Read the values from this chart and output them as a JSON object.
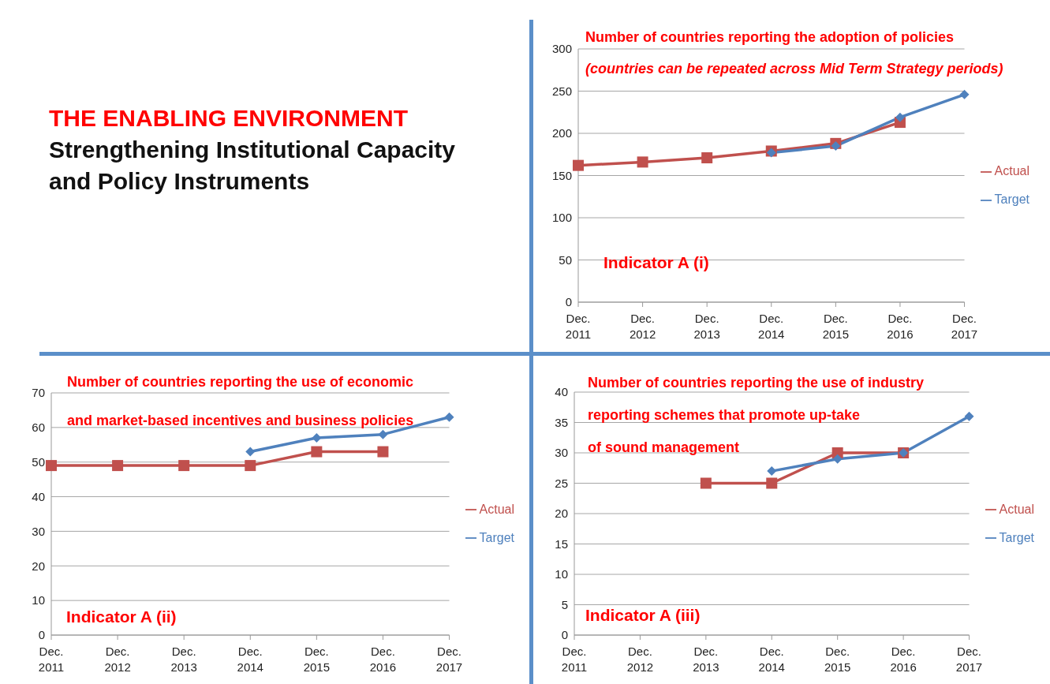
{
  "chart_data": [
    {
      "type": "other",
      "title": "THE ENABLING ENVIRONMENT",
      "subtitle": "Strengthening Institutional Capacity\nand Policy Instruments"
    },
    {
      "type": "line",
      "title": "Number of countries reporting the adoption of policies",
      "subtitle": "(countries can be repeated across Mid Term Strategy periods)",
      "annotations": [
        "Indicator A (i)"
      ],
      "categories": [
        "Dec. 2011",
        "Dec. 2012",
        "Dec. 2013",
        "Dec. 2014",
        "Dec. 2015",
        "Dec. 2016",
        "Dec. 2017"
      ],
      "series": [
        {
          "name": "Target",
          "color": "#4f81bd",
          "marker": "diamond",
          "values": [
            null,
            null,
            null,
            177,
            185,
            219,
            246
          ]
        },
        {
          "name": "Actual",
          "color": "#c0504d",
          "marker": "square",
          "values": [
            162,
            166,
            171,
            179,
            188,
            213,
            null
          ]
        }
      ],
      "ylim": [
        0,
        300
      ],
      "yticks": [
        0,
        50,
        100,
        150,
        200,
        250,
        300
      ],
      "grid": "y",
      "legend": "right"
    },
    {
      "type": "line",
      "title": "Number of countries reporting the use of economic\nand market-based incentives and business policies",
      "annotations": [
        "Indicator A (ii)"
      ],
      "categories": [
        "Dec. 2011",
        "Dec. 2012",
        "Dec. 2013",
        "Dec. 2014",
        "Dec. 2015",
        "Dec. 2016",
        "Dec. 2017"
      ],
      "series": [
        {
          "name": "Target",
          "color": "#4f81bd",
          "marker": "diamond",
          "values": [
            null,
            null,
            null,
            53,
            57,
            58,
            63
          ]
        },
        {
          "name": "Actual",
          "color": "#c0504d",
          "marker": "square",
          "values": [
            49,
            49,
            49,
            49,
            53,
            53,
            null
          ]
        }
      ],
      "ylim": [
        0,
        70
      ],
      "yticks": [
        0,
        10,
        20,
        30,
        40,
        50,
        60,
        70
      ],
      "grid": "y",
      "legend": "right"
    },
    {
      "type": "line",
      "title": "Number of countries reporting the use of industry\nreporting schemes that promote up-take\nof sound management",
      "annotations": [
        "Indicator A (iii)"
      ],
      "categories": [
        "Dec. 2011",
        "Dec. 2012",
        "Dec. 2013",
        "Dec. 2014",
        "Dec. 2015",
        "Dec. 2016",
        "Dec. 2017"
      ],
      "series": [
        {
          "name": "Target",
          "color": "#4f81bd",
          "marker": "diamond",
          "values": [
            null,
            null,
            null,
            27,
            29,
            30,
            36
          ]
        },
        {
          "name": "Actual",
          "color": "#c0504d",
          "marker": "square",
          "values": [
            null,
            null,
            25,
            25,
            30,
            30,
            null
          ]
        }
      ],
      "ylim": [
        0,
        40
      ],
      "yticks": [
        0,
        5,
        10,
        15,
        20,
        25,
        30,
        35,
        40
      ],
      "grid": "y",
      "legend": "right"
    }
  ]
}
